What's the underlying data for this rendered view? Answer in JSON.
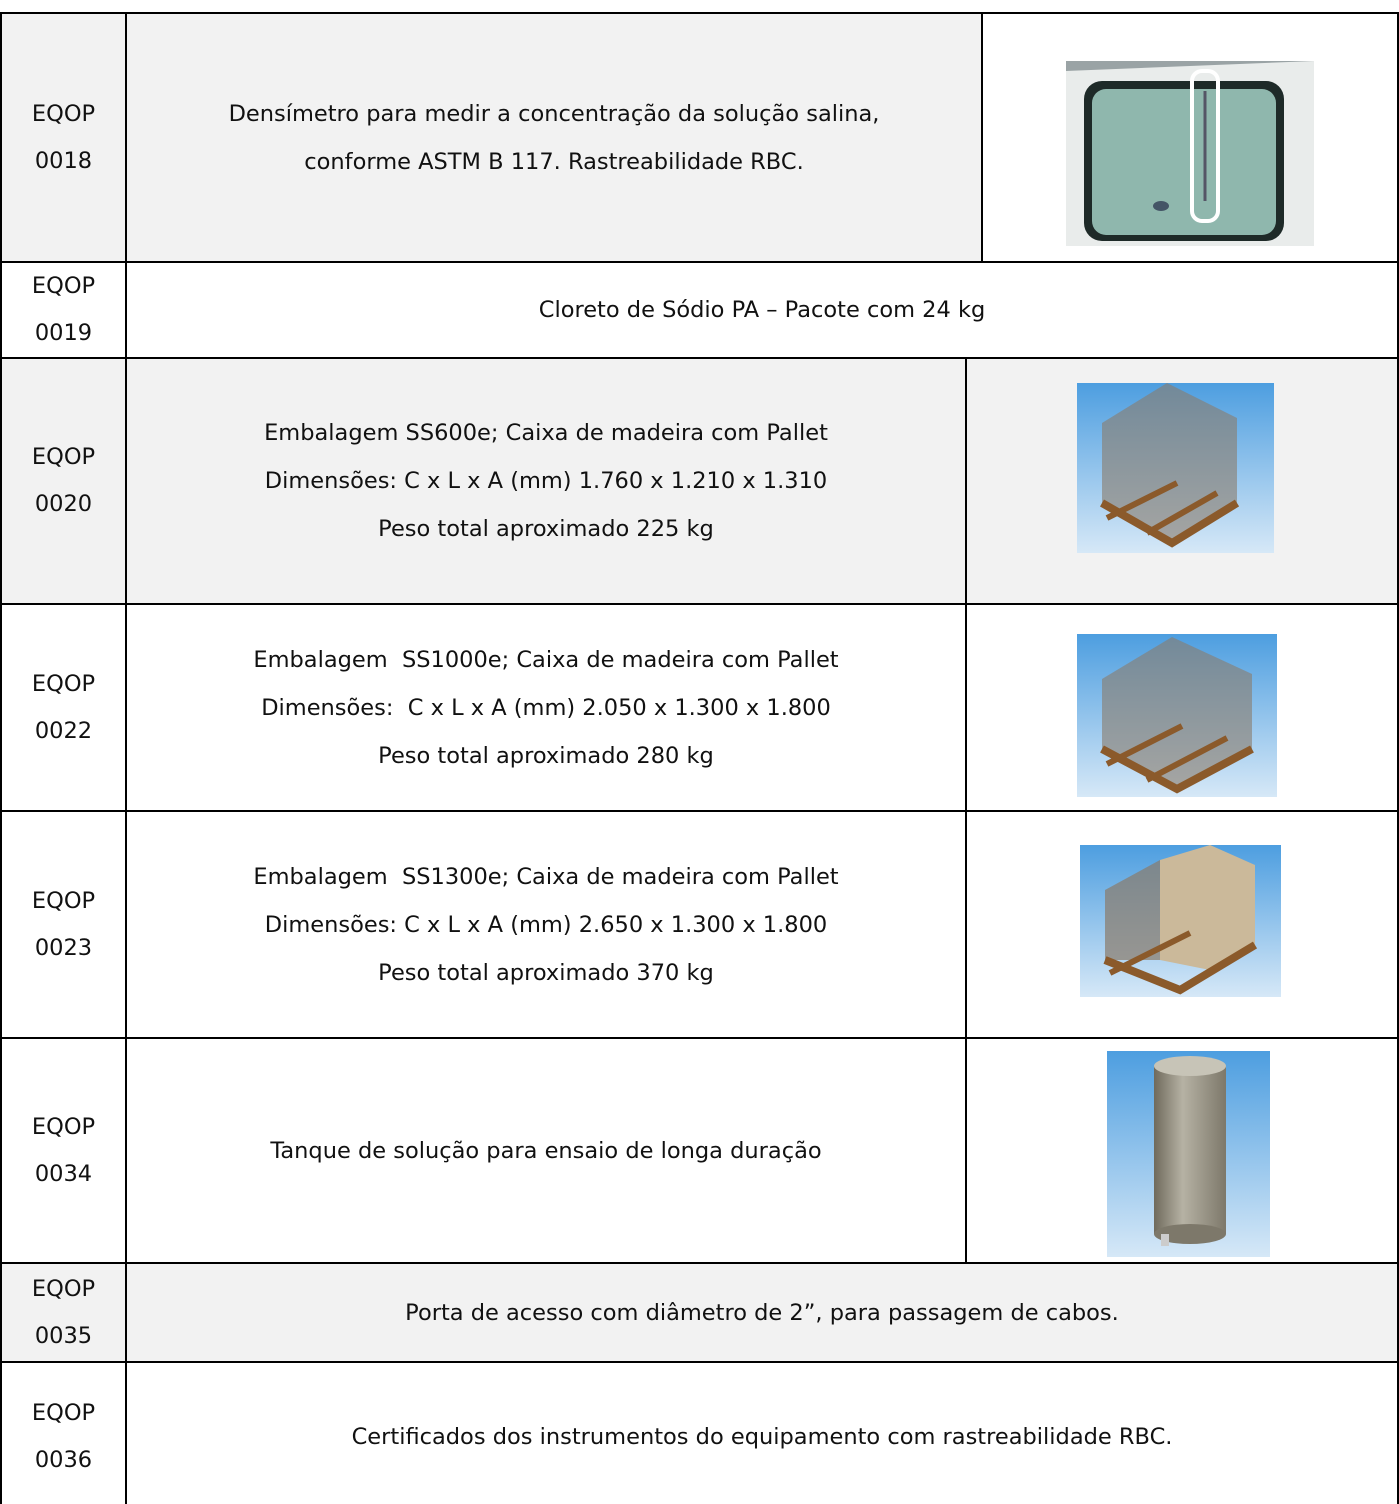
{
  "table": {
    "rows": [
      {
        "code": [
          "EQOP",
          "0018"
        ],
        "description": [
          "Densímetro para medir a concentração da solução salina,",
          "conforme ASTM B 117. Rastreabilidade RBC."
        ]
      },
      {
        "code": [
          "EQOP",
          "0019"
        ],
        "description": [
          "Cloreto de Sódio PA – Pacote com 24 kg"
        ]
      },
      {
        "code": [
          "EQOP",
          "0020"
        ],
        "description": [
          "Embalagem SS600e; Caixa de madeira com Pallet",
          "Dimensões: C x L x A (mm) 1.760 x 1.210 x 1.310",
          "Peso total aproximado 225 kg"
        ]
      },
      {
        "code": [
          "EQOP",
          "0022"
        ],
        "description": [
          "Embalagem  SS1000e; Caixa de madeira com Pallet",
          "Dimensões:  C x L x A (mm) 2.050 x 1.300 x 1.800",
          "Peso total aproximado 280 kg"
        ]
      },
      {
        "code": [
          "EQOP",
          "0023"
        ],
        "description": [
          "Embalagem  SS1300e; Caixa de madeira com Pallet",
          "Dimensões: C x L x A (mm) 2.650 x 1.300 x 1.800",
          "Peso total aproximado 370 kg"
        ]
      },
      {
        "code": [
          "EQOP",
          "0034"
        ],
        "description": [
          "Tanque de solução para ensaio de longa duração"
        ]
      },
      {
        "code": [
          "EQOP",
          "0035"
        ],
        "description": [
          "Porta de acesso com diâmetro de 2”, para passagem de cabos."
        ]
      },
      {
        "code": [
          "EQOP",
          "0036"
        ],
        "description": [
          "Certificados dos instrumentos do equipamento com rastreabilidade RBC."
        ]
      }
    ]
  }
}
